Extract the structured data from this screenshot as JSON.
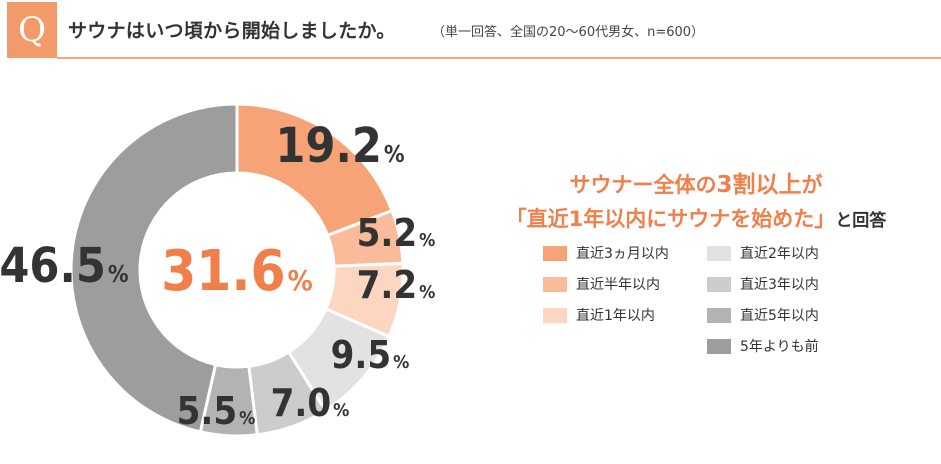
{
  "question": {
    "badge": "Q",
    "title": "サウナはいつ頃から開始しましたか。",
    "note": "（単一回答、全国の20〜60代男女、n=600）"
  },
  "headline": {
    "line1_a": "サウナー全体の",
    "line1_b": "3割以上",
    "line1_c": "が",
    "line2_a": "「直近1年以内にサウナを始めた」",
    "line2_b": "と回答"
  },
  "chart_data": {
    "type": "donut",
    "unit": "%",
    "center_label": "31.6",
    "categories": [
      "直近3ヵ月以内",
      "直近半年以内",
      "直近1年以内",
      "直近2年以内",
      "直近3年以内",
      "直近5年以内",
      "5年よりも前"
    ],
    "values": [
      19.2,
      5.2,
      7.2,
      9.5,
      7.0,
      5.5,
      46.5
    ],
    "value_labels": [
      "19.2",
      "5.2",
      "7.2",
      "9.5",
      "7.0",
      "5.5",
      "46.5"
    ],
    "colors": [
      "#f7a378",
      "#f9bb99",
      "#fcd6c1",
      "#e2e2e2",
      "#cccccc",
      "#b3b3b3",
      "#9d9d9d"
    ],
    "legend_placement": "right"
  }
}
